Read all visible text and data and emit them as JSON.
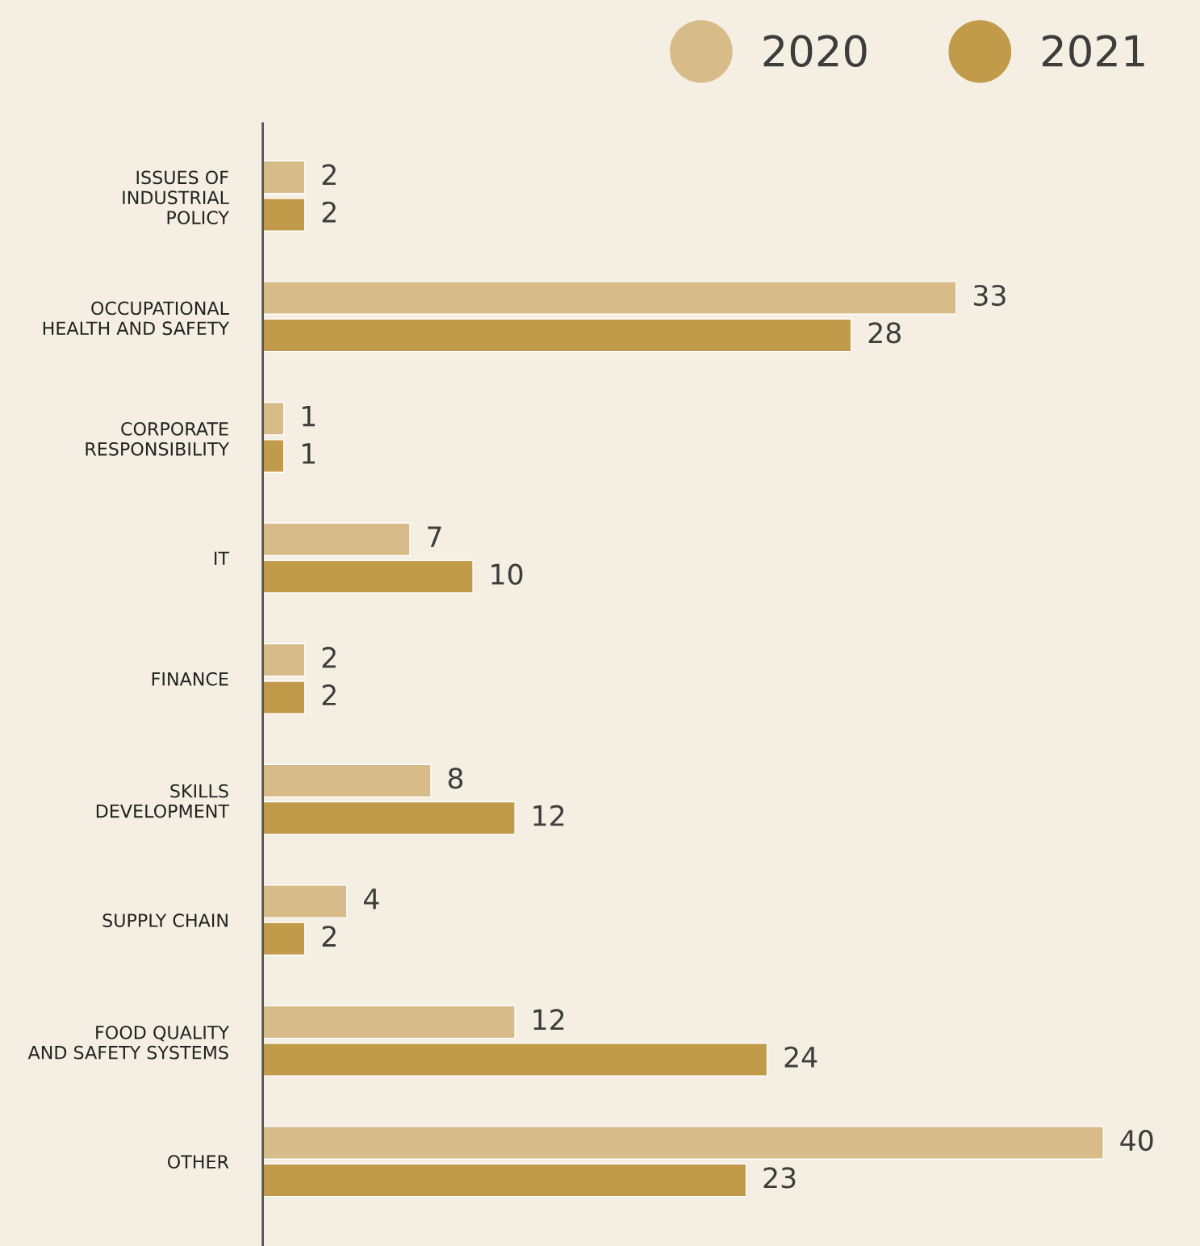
{
  "chart_data": {
    "type": "bar",
    "orientation": "horizontal",
    "data_labels": true,
    "legend": "top right",
    "grid": false,
    "categories": [
      "ISSUES OF\nINDUSTRIAL\nPOLICY",
      "OCCUPATIONAL\nHEALTH AND SAFETY",
      "CORPORATE\nRESPONSIBILITY",
      "IT",
      "FINANCE",
      "SKILLS\nDEVELOPMENT",
      "SUPPLY CHAIN",
      "FOOD QUALITY\nAND SAFETY SYSTEMS",
      "OTHER"
    ],
    "series": [
      {
        "name": "2020",
        "color": "#d7bc8a",
        "values": [
          2,
          33,
          1,
          7,
          2,
          8,
          4,
          12,
          40
        ]
      },
      {
        "name": "2021",
        "color": "#c19a4a",
        "values": [
          2,
          28,
          1,
          10,
          2,
          12,
          2,
          24,
          23
        ]
      }
    ]
  }
}
